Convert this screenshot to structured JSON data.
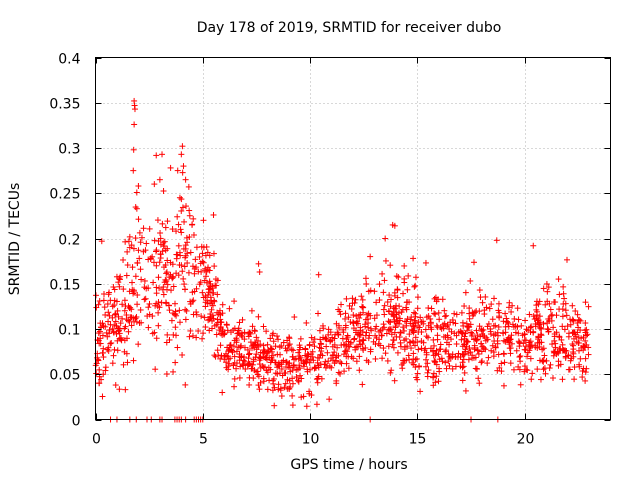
{
  "chart_data": {
    "type": "scatter",
    "title": "Day 178 of 2019, SRMTID for receiver dubo",
    "xlabel": "GPS time / hours",
    "ylabel": "SRMTID / TECUs",
    "xlim": [
      0,
      24
    ],
    "ylim": [
      0,
      0.4
    ],
    "xticks": [
      0,
      5,
      10,
      15,
      20
    ],
    "xtick_labels": [
      "0",
      "5",
      "10",
      "15",
      "20"
    ],
    "yticks": [
      0,
      0.05,
      0.1,
      0.15,
      0.2,
      0.25,
      0.3,
      0.35,
      0.4
    ],
    "ytick_labels": [
      "0",
      "0.05",
      "0.1",
      "0.15",
      "0.2",
      "0.25",
      "0.3",
      "0.35",
      "0.4"
    ],
    "grid": true,
    "marker": "plus",
    "color": "#ff0000",
    "series": [
      {
        "name": "SRMTID",
        "profile": [
          {
            "x": 0.0,
            "mean": 0.09,
            "spread": 0.035
          },
          {
            "x": 0.5,
            "mean": 0.095,
            "spread": 0.035
          },
          {
            "x": 1.0,
            "mean": 0.105,
            "spread": 0.04
          },
          {
            "x": 1.5,
            "mean": 0.12,
            "spread": 0.045
          },
          {
            "x": 2.0,
            "mean": 0.15,
            "spread": 0.06
          },
          {
            "x": 2.5,
            "mean": 0.14,
            "spread": 0.05
          },
          {
            "x": 3.0,
            "mean": 0.17,
            "spread": 0.05
          },
          {
            "x": 3.5,
            "mean": 0.15,
            "spread": 0.045
          },
          {
            "x": 4.0,
            "mean": 0.18,
            "spread": 0.06
          },
          {
            "x": 4.5,
            "mean": 0.16,
            "spread": 0.045
          },
          {
            "x": 5.0,
            "mean": 0.15,
            "spread": 0.04
          },
          {
            "x": 5.5,
            "mean": 0.13,
            "spread": 0.035
          },
          {
            "x": 6.0,
            "mean": 0.085,
            "spread": 0.025
          },
          {
            "x": 7.0,
            "mean": 0.075,
            "spread": 0.022
          },
          {
            "x": 8.0,
            "mean": 0.065,
            "spread": 0.022
          },
          {
            "x": 9.0,
            "mean": 0.06,
            "spread": 0.022
          },
          {
            "x": 10.0,
            "mean": 0.06,
            "spread": 0.022
          },
          {
            "x": 11.0,
            "mean": 0.075,
            "spread": 0.025
          },
          {
            "x": 12.0,
            "mean": 0.095,
            "spread": 0.03
          },
          {
            "x": 13.0,
            "mean": 0.1,
            "spread": 0.03
          },
          {
            "x": 14.0,
            "mean": 0.115,
            "spread": 0.035
          },
          {
            "x": 15.0,
            "mean": 0.09,
            "spread": 0.03
          },
          {
            "x": 16.0,
            "mean": 0.085,
            "spread": 0.028
          },
          {
            "x": 17.0,
            "mean": 0.09,
            "spread": 0.028
          },
          {
            "x": 18.0,
            "mean": 0.095,
            "spread": 0.03
          },
          {
            "x": 19.0,
            "mean": 0.09,
            "spread": 0.028
          },
          {
            "x": 20.0,
            "mean": 0.085,
            "spread": 0.028
          },
          {
            "x": 21.0,
            "mean": 0.1,
            "spread": 0.03
          },
          {
            "x": 22.0,
            "mean": 0.095,
            "spread": 0.03
          },
          {
            "x": 23.0,
            "mean": 0.08,
            "spread": 0.025
          }
        ],
        "n_points": 1700,
        "highlights": [
          {
            "x": 1.8,
            "y": 0.352
          },
          {
            "x": 1.82,
            "y": 0.347
          },
          {
            "x": 1.84,
            "y": 0.343
          },
          {
            "x": 1.8,
            "y": 0.326
          },
          {
            "x": 1.78,
            "y": 0.298
          },
          {
            "x": 1.76,
            "y": 0.275
          },
          {
            "x": 3.1,
            "y": 0.293
          },
          {
            "x": 3.5,
            "y": 0.278
          },
          {
            "x": 4.05,
            "y": 0.302
          },
          {
            "x": 4.0,
            "y": 0.293
          },
          {
            "x": 4.1,
            "y": 0.28
          },
          {
            "x": 4.2,
            "y": 0.265
          },
          {
            "x": 4.35,
            "y": 0.257
          },
          {
            "x": 3.0,
            "y": 0.265
          },
          {
            "x": 2.0,
            "y": 0.258
          },
          {
            "x": 5.5,
            "y": 0.226
          },
          {
            "x": 13.85,
            "y": 0.215
          },
          {
            "x": 13.95,
            "y": 0.214
          },
          {
            "x": 13.5,
            "y": 0.2
          },
          {
            "x": 20.4,
            "y": 0.192
          },
          {
            "x": 18.7,
            "y": 0.198
          },
          {
            "x": 7.6,
            "y": 0.172
          },
          {
            "x": 7.65,
            "y": 0.163
          },
          {
            "x": 10.4,
            "y": 0.16
          },
          {
            "x": 12.8,
            "y": 0.18
          },
          {
            "x": 14.8,
            "y": 0.178
          },
          {
            "x": 15.4,
            "y": 0.173
          }
        ],
        "zero_points_x": [
          0.7,
          1.0,
          1.6,
          1.9,
          2.4,
          2.6,
          3.0,
          3.1,
          3.7,
          3.8,
          3.9,
          4.0,
          4.2,
          4.6,
          4.7,
          4.8,
          4.9,
          5.0,
          12.8,
          17.5,
          18.75
        ]
      }
    ]
  }
}
